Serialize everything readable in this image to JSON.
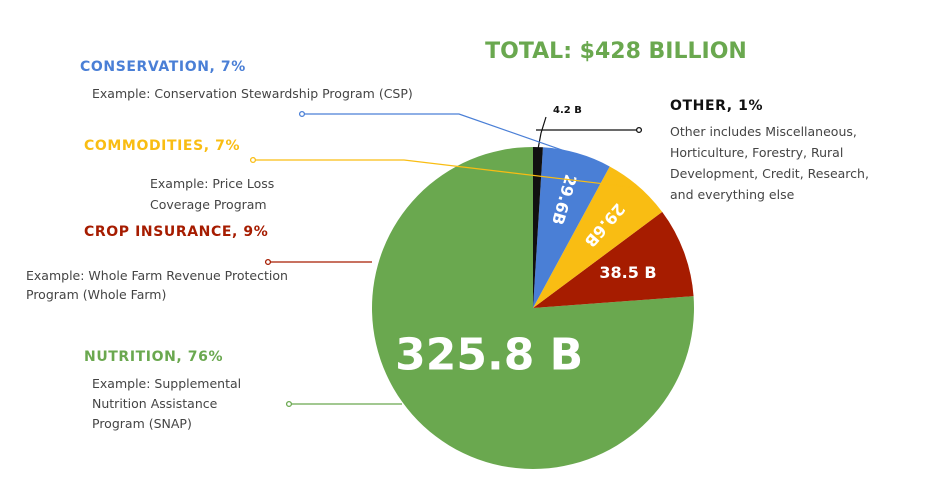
{
  "total_label": "TOTAL: $428 BILLION",
  "colors": {
    "nutrition": "#6aa84f",
    "crop_insurance": "#a61c00",
    "commodities": "#f9bd13",
    "conservation": "#4a7fd6",
    "other": "#111111",
    "total": "#6aa84f"
  },
  "chart_data": {
    "type": "pie",
    "title": "TOTAL: $428 BILLION",
    "slices": [
      {
        "key": "nutrition",
        "name": "NUTRITION, 76%",
        "value": 325.8,
        "label": "325.8 B",
        "example": [
          "Example: Supplemental",
          "Nutrition Assistance",
          "Program (SNAP)"
        ]
      },
      {
        "key": "crop_insurance",
        "name": "CROP INSURANCE, 9%",
        "value": 38.5,
        "label": "38.5 B",
        "example": [
          "Example: Whole Farm Revenue Protection",
          "Program (Whole Farm)"
        ]
      },
      {
        "key": "commodities",
        "name": "COMMODITIES, 7%",
        "value": 29.6,
        "label": "29.6B",
        "example": [
          "Example: Price Loss",
          "Coverage Program"
        ]
      },
      {
        "key": "conservation",
        "name": "CONSERVATION, 7%",
        "value": 29.6,
        "label": "29.6B",
        "example": [
          "Example: Conservation Stewardship Program (CSP)"
        ]
      },
      {
        "key": "other",
        "name": "OTHER, 1%",
        "value": 4.2,
        "label": "4.2 B",
        "example": [
          "Other includes Miscellaneous,",
          "Horticulture, Forestry, Rural",
          "Development, Credit, Research,",
          "and everything else"
        ]
      }
    ]
  }
}
